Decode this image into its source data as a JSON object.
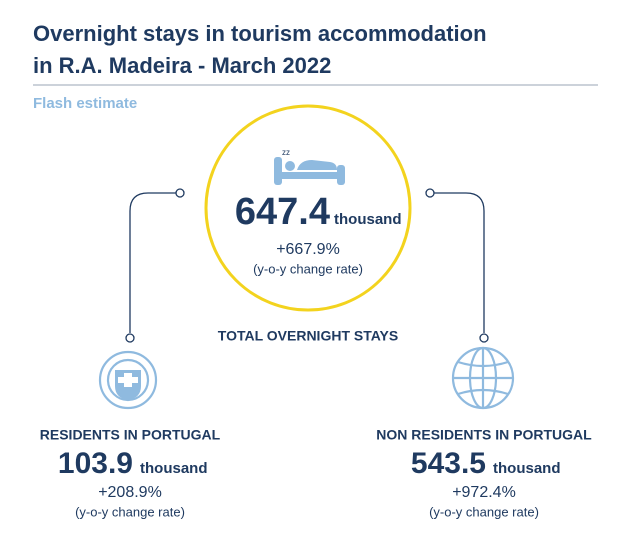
{
  "header": {
    "title_lines": [
      "Overnight stays in tourism accommodation",
      "in R.A. Madeira - March 2022"
    ],
    "subtitle": "Flash estimate"
  },
  "total": {
    "value": "647.4",
    "unit": "thousand",
    "rate": "+667.9%",
    "rate_note": "(y-o-y change rate)",
    "label": "TOTAL OVERNIGHT STAYS"
  },
  "residents": {
    "label": "RESIDENTS IN PORTUGAL",
    "value": "103.9",
    "unit": "thousand",
    "rate": "+208.9%",
    "rate_note": "(y-o-y change rate)"
  },
  "non_residents": {
    "label": "NON RESIDENTS IN PORTUGAL",
    "value": "543.5",
    "unit": "thousand",
    "rate": "+972.4%",
    "rate_note": "(y-o-y change rate)"
  }
}
